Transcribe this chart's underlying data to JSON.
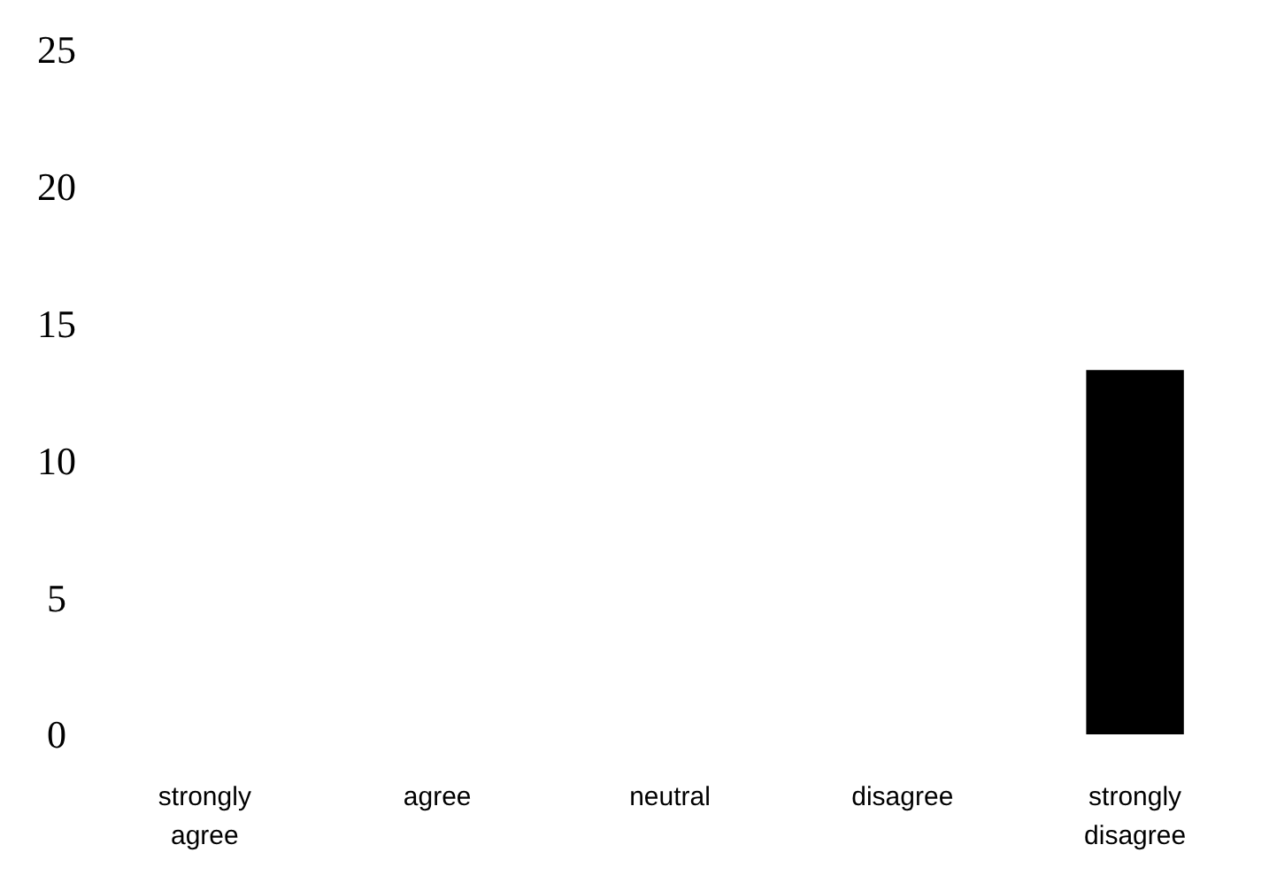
{
  "chart_data": {
    "type": "bar",
    "categories": [
      "strongly agree",
      "agree",
      "neutral",
      "disagree",
      "strongly disagree"
    ],
    "values": [
      0,
      0,
      0,
      0,
      13.3
    ],
    "color": "#000000",
    "ylim": [
      0,
      25
    ],
    "yticks": [
      0,
      5,
      10,
      15,
      20,
      25
    ]
  }
}
